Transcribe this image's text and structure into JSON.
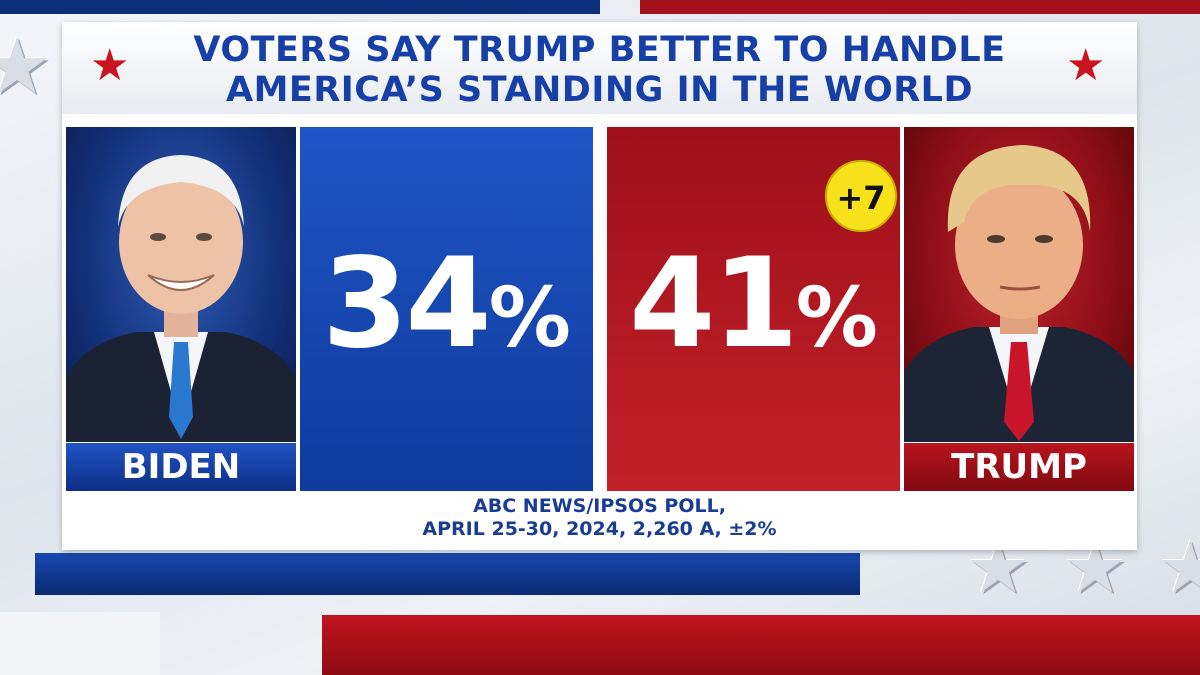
{
  "title": {
    "line1": "VOTERS SAY TRUMP BETTER TO HANDLE",
    "line2": "AMERICA’S STANDING IN THE WORLD"
  },
  "colors": {
    "democrat_blue": "#1640a8",
    "republican_red": "#b8141f",
    "badge_yellow": "#f7e11a"
  },
  "candidates": [
    {
      "name": "BIDEN",
      "percent_label": "34",
      "photo": "biden-portrait"
    },
    {
      "name": "TRUMP",
      "percent_label": "41",
      "photo": "trump-portrait"
    }
  ],
  "percent_sign": "%",
  "margin_badge": "+7",
  "source": {
    "line1": "ABC NEWS/IPSOS POLL,",
    "line2": "APRIL 25-30, 2024, 2,260 A, ±2%"
  },
  "chart_data": {
    "type": "bar",
    "title": "VOTERS SAY TRUMP BETTER TO HANDLE AMERICA’S STANDING IN THE WORLD",
    "categories": [
      "BIDEN",
      "TRUMP"
    ],
    "values": [
      34,
      41
    ],
    "unit": "%",
    "annotations": [
      "+7"
    ],
    "source": "ABC NEWS/IPSOS POLL, APRIL 25-30, 2024, 2,260 A, ±2%"
  }
}
